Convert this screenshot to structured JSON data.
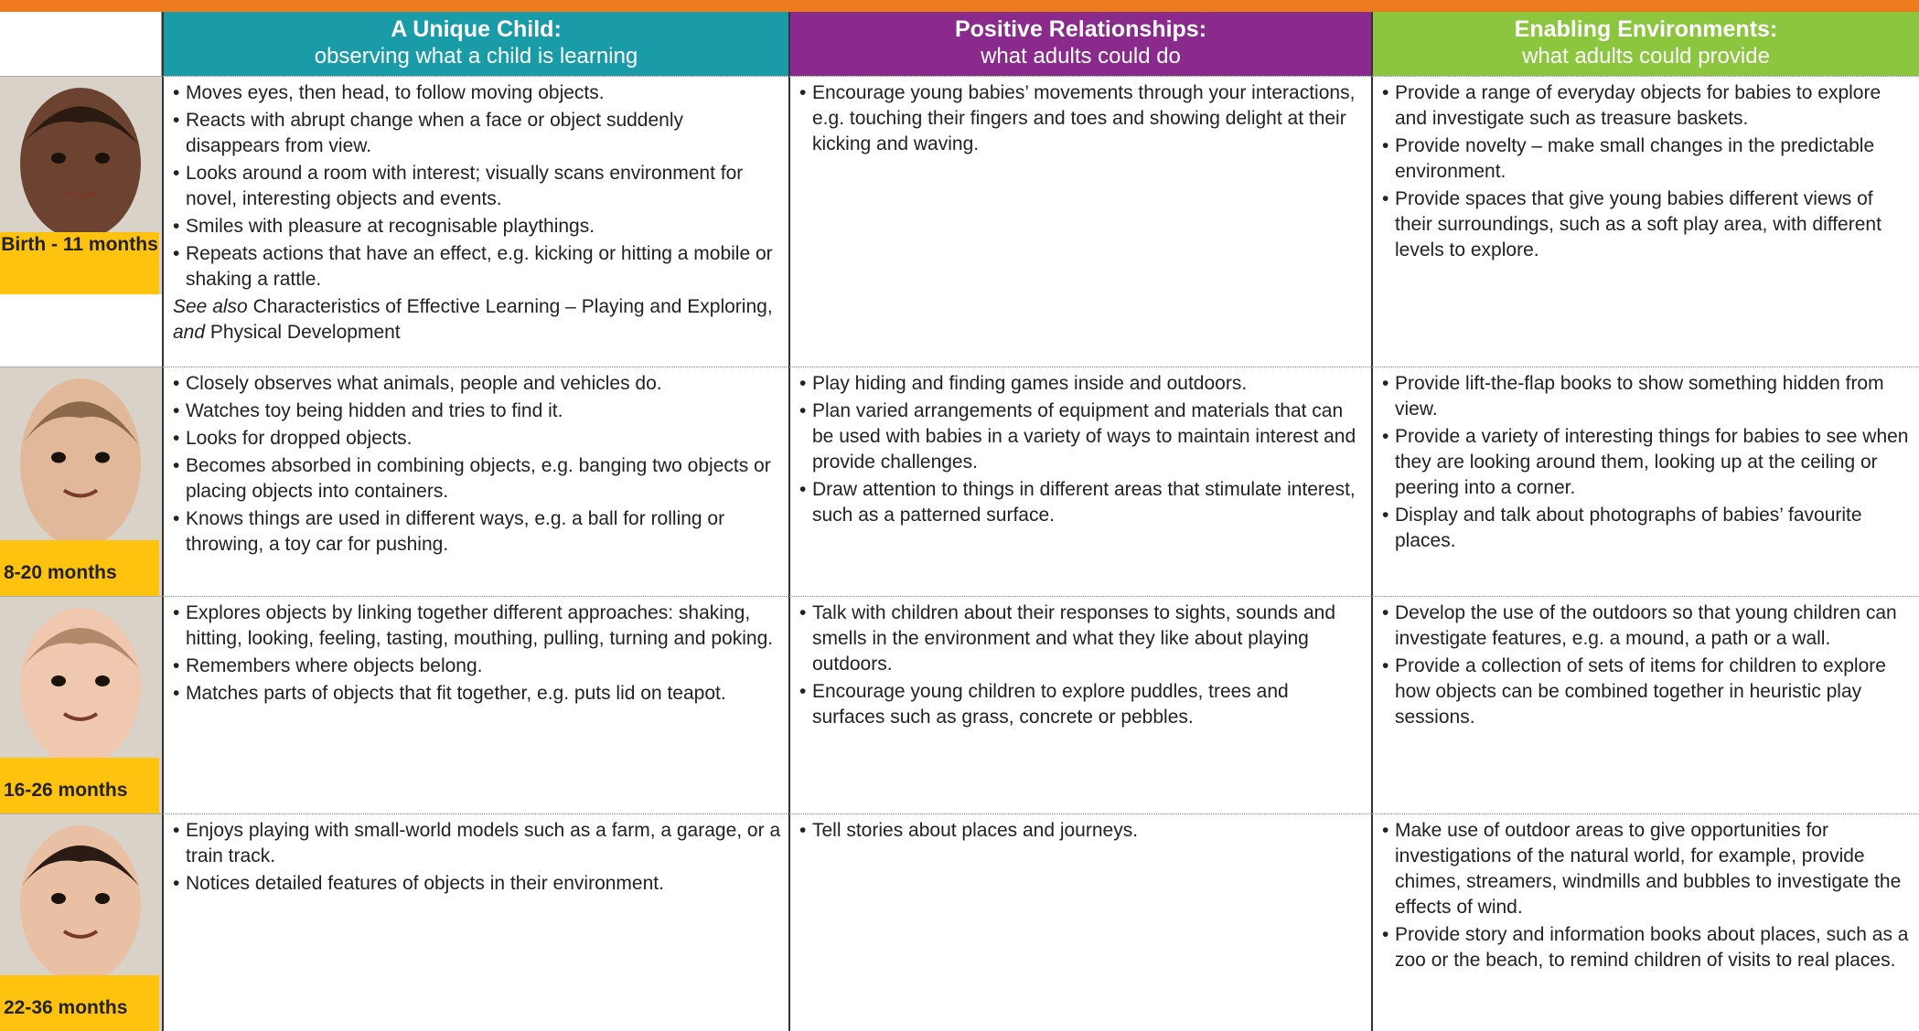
{
  "columns": [
    {
      "title": "A Unique Child:",
      "subtitle": "observing what a child is learning",
      "color": "#1a9ba8"
    },
    {
      "title": "Positive Relationships:",
      "subtitle": "what adults could do",
      "color": "#8a2a8c"
    },
    {
      "title": "Enabling Environments:",
      "subtitle": "what adults could provide",
      "color": "#8cc63f"
    }
  ],
  "rows": [
    {
      "age": "Birth - 11 months",
      "skin": "#6b4330",
      "hair": "#2a1a12",
      "child": [
        "Moves eyes, then head, to follow moving objects.",
        "Reacts with abrupt change when a face or object suddenly disappears from view.",
        "Looks around a room with interest; visually scans environment for novel, interesting objects and events.",
        "Smiles with pleasure at recognisable playthings.",
        "Repeats actions that have an effect, e.g. kicking or hitting a mobile or shaking a rattle."
      ],
      "note": [
        {
          "text": "See also",
          "italic": true
        },
        {
          "text": " Characteristics of Effective Learning – Playing and Exploring, ",
          "italic": false
        },
        {
          "text": "and",
          "italic": true
        },
        {
          "text": " Physical Development",
          "italic": false
        }
      ],
      "adults": [
        "Encourage young babies’ movements through your interactions, e.g. touching their fingers and toes and showing delight at their kicking and waving."
      ],
      "environment": [
        "Provide a range of everyday objects for babies to explore and investigate such as treasure baskets.",
        "Provide novelty – make small changes in the predictable environment.",
        "Provide spaces that give young babies different views of their surroundings, such as a soft play area, with different levels to explore."
      ]
    },
    {
      "age": "8-20 months",
      "skin": "#e2b89a",
      "hair": "#8a6a4a",
      "child": [
        "Closely observes what animals, people and vehicles do.",
        "Watches toy being hidden and tries to find it.",
        "Looks for dropped objects.",
        "Becomes absorbed in combining objects, e.g. banging two objects or placing objects into containers.",
        "Knows things are used in different ways, e.g. a ball for rolling or throwing, a toy car for pushing."
      ],
      "adults": [
        "Play hiding and finding games inside and outdoors.",
        "Plan varied arrangements of equipment and materials that can be used with babies in a variety of ways to maintain interest and provide challenges.",
        "Draw attention to things in different areas that stimulate interest, such as a patterned surface."
      ],
      "environment": [
        "Provide lift-the-flap books to show something hidden from view.",
        "Provide a variety of interesting things for babies to see when they are looking around them, looking up at the ceiling or peering into a corner.",
        "Display and talk about photographs of babies’ favourite places."
      ]
    },
    {
      "age": "16-26 months",
      "skin": "#f0c8b0",
      "hair": "#b08a6a",
      "child": [
        "Explores objects by linking together different approaches: shaking, hitting, looking, feeling, tasting, mouthing, pulling, turning and poking.",
        "Remembers where objects belong.",
        "Matches parts of objects that fit together, e.g. puts lid on teapot."
      ],
      "adults": [
        "Talk with children about their responses to sights, sounds and smells in the environment and what they like about playing outdoors.",
        "Encourage young children to explore puddles, trees and surfaces such as grass, concrete or pebbles."
      ],
      "environment": [
        "Develop the use of the outdoors so that young children can investigate features, e.g. a mound, a path or a wall.",
        "Provide a collection of sets of items for children to explore how objects can be combined together in heuristic play sessions."
      ]
    },
    {
      "age": "22-36 months",
      "skin": "#eac0a4",
      "hair": "#2a1c14",
      "child": [
        "Enjoys playing with small-world models such as a farm, a garage, or a train track.",
        "Notices detailed features of objects in their environment."
      ],
      "adults": [
        "Tell stories about places and journeys."
      ],
      "environment": [
        "Make use of outdoor areas to give opportunities for investigations of the natural world, for example, provide chimes, streamers, windmills and bubbles to investigate the effects of wind.",
        "Provide story and information books about places, such as a zoo or the beach, to remind children of visits to real places."
      ]
    }
  ]
}
